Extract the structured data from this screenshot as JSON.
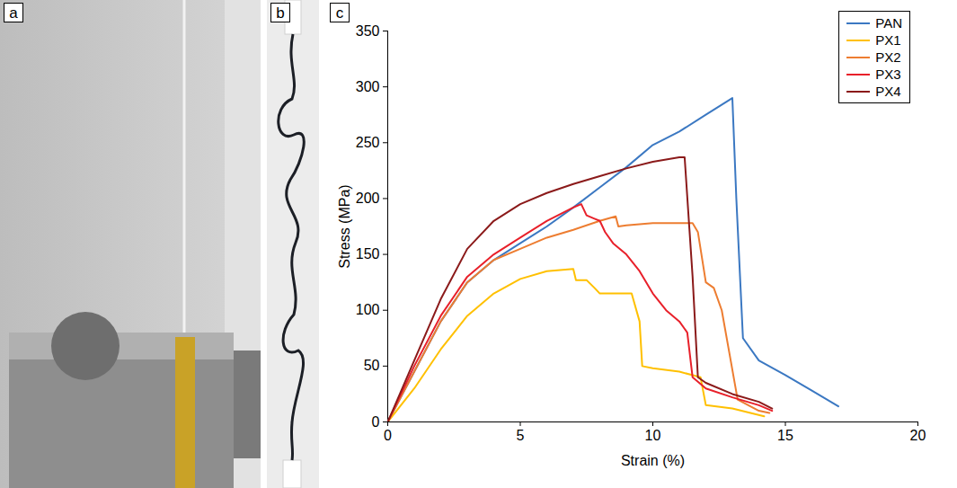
{
  "panel_labels": [
    "a",
    "b",
    "c"
  ],
  "chart_data": {
    "type": "line",
    "x_label": "Strain (%)",
    "y_label": "Stress (MPa)",
    "xlim": [
      0,
      20
    ],
    "xticks": [
      0,
      5,
      10,
      15,
      20
    ],
    "ylim": [
      0,
      350
    ],
    "yticks": [
      0,
      50,
      100,
      150,
      200,
      250,
      300,
      350
    ],
    "grid": false,
    "legend": "top-right",
    "series": [
      {
        "name": "PAN",
        "color": "#3b78c2",
        "x": [
          0,
          1,
          2,
          3,
          4,
          5,
          6,
          7,
          8,
          9,
          10,
          11,
          12,
          13,
          13.15,
          13.4,
          14,
          15,
          16,
          17
        ],
        "values": [
          0,
          45,
          90,
          125,
          145,
          160,
          175,
          192,
          210,
          228,
          248,
          260,
          275,
          290,
          200,
          75,
          55,
          42,
          28,
          14
        ]
      },
      {
        "name": "PX1",
        "color": "#ffc000",
        "x": [
          0,
          1,
          2,
          3,
          4,
          5,
          6,
          7,
          7.1,
          7.5,
          7.8,
          8,
          8.5,
          9.2,
          9.5,
          9.6,
          10,
          11,
          11.8,
          12,
          13,
          14.2
        ],
        "values": [
          0,
          30,
          65,
          95,
          115,
          128,
          135,
          137,
          127,
          127,
          120,
          115,
          115,
          115,
          90,
          50,
          48,
          45,
          40,
          15,
          12,
          5
        ]
      },
      {
        "name": "PX2",
        "color": "#ed7d31",
        "x": [
          0,
          1,
          2,
          3,
          4,
          5,
          6,
          7,
          8,
          8.6,
          8.7,
          9,
          10,
          11.5,
          11.7,
          12,
          12.3,
          12.6,
          12.9,
          13.2,
          14,
          14.4
        ],
        "values": [
          0,
          45,
          90,
          125,
          145,
          155,
          165,
          172,
          180,
          184,
          175,
          176,
          178,
          178,
          170,
          125,
          120,
          100,
          60,
          20,
          10,
          8
        ]
      },
      {
        "name": "PX3",
        "color": "#e8202a",
        "x": [
          0,
          1,
          2,
          3,
          4,
          5,
          6,
          7,
          7.3,
          7.5,
          7.8,
          8,
          8.2,
          8.5,
          9,
          9.5,
          10,
          10.5,
          11,
          11.3,
          11.5,
          12,
          13,
          14,
          14.5
        ],
        "values": [
          0,
          50,
          95,
          130,
          150,
          165,
          180,
          192,
          195,
          185,
          182,
          180,
          170,
          160,
          150,
          135,
          115,
          100,
          90,
          80,
          40,
          30,
          22,
          15,
          10
        ]
      },
      {
        "name": "PX4",
        "color": "#8b1a1a",
        "x": [
          0,
          1,
          2,
          3,
          4,
          5,
          6,
          7,
          8,
          9,
          10,
          11,
          11.2,
          11.5,
          11.7,
          12,
          13,
          14,
          14.5
        ],
        "values": [
          0,
          55,
          110,
          155,
          180,
          195,
          205,
          213,
          220,
          227,
          233,
          237,
          237,
          130,
          40,
          35,
          25,
          18,
          12
        ]
      }
    ]
  }
}
